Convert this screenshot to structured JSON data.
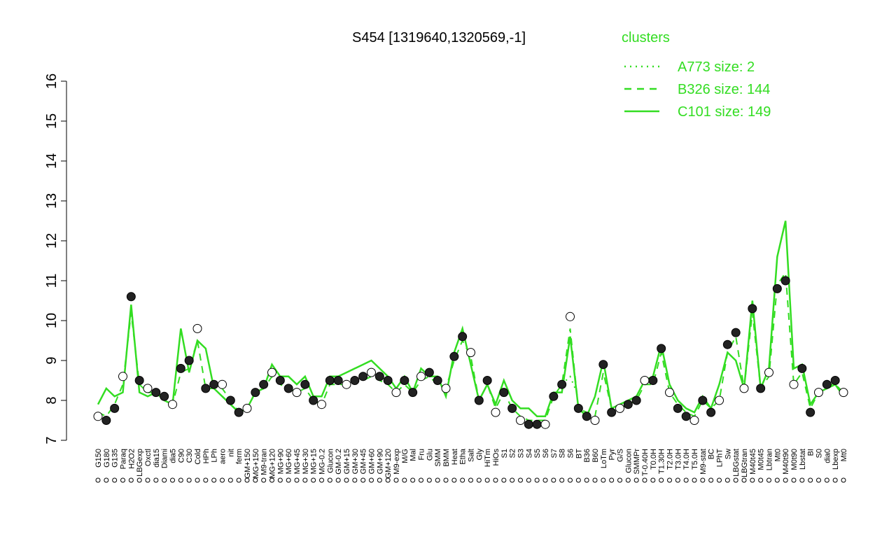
{
  "chart_data": {
    "type": "line",
    "title": "S454 [1319640,1320569,-1]",
    "legend_title": "clusters",
    "legend": "top-right",
    "ylim": [
      7,
      16
    ],
    "yticks": [
      7,
      8,
      9,
      10,
      11,
      12,
      13,
      14,
      15,
      16
    ],
    "categories": [
      "G150",
      "G180",
      "G135",
      "Paraq",
      "H2O2",
      "LBGexp",
      "Oxctl",
      "dia15",
      "Diami",
      "dia5",
      "C90",
      "C30",
      "Cold",
      "HPh",
      "LPh",
      "aero",
      "nit",
      "ferm",
      "GM+150",
      "MG+150",
      "M9-tran",
      "MG+120",
      "MG+90",
      "MG+60",
      "MG+45",
      "MG+30",
      "MG+15",
      "MG-0.2",
      "Glucon",
      "GM-0.2",
      "GM+15",
      "GM+30",
      "GM+45",
      "GM+60",
      "GM+90",
      "GM+120",
      "M9-exp",
      "M/G",
      "Mal",
      "Fru",
      "Glu",
      "SMM",
      "BMM",
      "Heat",
      "Etha",
      "Salt",
      "Gly",
      "HiTm",
      "HiOs",
      "S1",
      "S2",
      "S3",
      "S4",
      "S5",
      "S6",
      "S7",
      "S8",
      "S6",
      "BT",
      "B36",
      "B60",
      "LoTm",
      "Pyr",
      "G/S",
      "Glucon",
      "SMMPr",
      "T-0.40H",
      "T0.0H",
      "T1.30H",
      "T2.0H",
      "T3.0H",
      "T4.0H",
      "T5.0H",
      "M9-stat",
      "BC",
      "LPhT",
      "Sw",
      "LBGstat",
      "LBGtran",
      "M40t45",
      "M0t45",
      "Lbtran",
      "Mt0",
      "M40t90",
      "M0t90",
      "Lbstat",
      "BI",
      "S0",
      "dia0",
      "Lbexp",
      "Mt0"
    ],
    "values": [
      7.6,
      7.5,
      7.8,
      8.6,
      10.6,
      8.5,
      8.3,
      8.2,
      8.1,
      7.9,
      8.8,
      9.0,
      9.8,
      8.3,
      8.4,
      8.4,
      8.0,
      7.7,
      7.8,
      8.2,
      8.4,
      8.7,
      8.5,
      8.3,
      8.2,
      8.4,
      8.0,
      7.9,
      8.5,
      8.5,
      8.4,
      8.5,
      8.6,
      8.7,
      8.6,
      8.5,
      8.2,
      8.5,
      8.2,
      8.6,
      8.7,
      8.5,
      8.3,
      9.1,
      9.6,
      9.2,
      8.0,
      8.5,
      7.7,
      8.2,
      7.8,
      7.5,
      7.4,
      7.4,
      7.4,
      8.1,
      8.4,
      10.1,
      7.8,
      7.6,
      7.5,
      8.9,
      7.7,
      7.8,
      7.9,
      8.0,
      8.5,
      8.5,
      9.3,
      8.2,
      7.8,
      7.6,
      7.5,
      8.0,
      7.7,
      8.0,
      9.4,
      9.7,
      8.3,
      10.3,
      8.3,
      8.7,
      10.8,
      11.0,
      8.4,
      8.8,
      7.7,
      8.2,
      8.4,
      8.5,
      8.2
    ],
    "series": [
      {
        "name": "A773 size: 2",
        "color": "#33dd22",
        "style": "dotted",
        "values": [
          null,
          null,
          null,
          null,
          null,
          null,
          null,
          null,
          null,
          null,
          null,
          null,
          null,
          null,
          null,
          null,
          null,
          null,
          null,
          null,
          null,
          null,
          null,
          null,
          null,
          null,
          null,
          null,
          null,
          null,
          null,
          null,
          null,
          null,
          null,
          null,
          null,
          null,
          null,
          null,
          null,
          null,
          null,
          null,
          null,
          null,
          null,
          null,
          null,
          null,
          null,
          null,
          null,
          null,
          null,
          null,
          8.4,
          8.6,
          8.1,
          null,
          null,
          null,
          null,
          null,
          null,
          null,
          null,
          null,
          null,
          null,
          null,
          null,
          null,
          null,
          null,
          null,
          null,
          null,
          null,
          null,
          null,
          null,
          null,
          null,
          null,
          null,
          null,
          null,
          null,
          null,
          null
        ]
      },
      {
        "name": "B326 size: 144",
        "color": "#33dd22",
        "style": "dashed",
        "values": [
          7.7,
          7.6,
          7.9,
          8.4,
          10.2,
          8.4,
          8.2,
          8.2,
          8.0,
          7.9,
          8.7,
          8.8,
          9.5,
          8.3,
          8.3,
          8.3,
          8.0,
          7.7,
          7.8,
          8.2,
          8.3,
          8.6,
          8.4,
          8.3,
          8.2,
          8.3,
          8.0,
          7.9,
          8.4,
          8.4,
          8.4,
          8.5,
          8.5,
          8.6,
          8.5,
          8.4,
          8.2,
          8.4,
          8.2,
          8.5,
          8.6,
          8.4,
          8.3,
          9.0,
          9.5,
          9.1,
          8.0,
          8.4,
          7.8,
          8.2,
          7.8,
          7.6,
          7.5,
          7.5,
          7.5,
          8.1,
          8.4,
          9.8,
          7.8,
          7.7,
          7.6,
          8.7,
          7.8,
          7.8,
          7.9,
          8.0,
          8.4,
          8.4,
          9.2,
          8.2,
          7.9,
          7.7,
          7.6,
          8.0,
          7.8,
          8.0,
          9.2,
          9.6,
          8.3,
          10.2,
          8.3,
          8.6,
          10.9,
          11.2,
          8.4,
          8.7,
          7.8,
          8.2,
          8.4,
          8.4,
          8.2
        ]
      },
      {
        "name": "C101 size: 149",
        "color": "#33dd22",
        "style": "solid",
        "values": [
          7.9,
          8.3,
          8.1,
          8.2,
          10.4,
          8.2,
          8.1,
          8.2,
          8.0,
          7.9,
          9.8,
          8.7,
          9.5,
          9.3,
          8.3,
          8.1,
          7.9,
          7.7,
          7.8,
          8.2,
          8.3,
          8.9,
          8.6,
          8.6,
          8.4,
          8.6,
          8.1,
          8.1,
          8.6,
          8.6,
          8.7,
          8.8,
          8.9,
          9.0,
          8.8,
          8.6,
          8.3,
          8.6,
          8.2,
          8.8,
          8.6,
          8.6,
          8.1,
          9.2,
          9.8,
          8.9,
          8.0,
          8.4,
          7.9,
          8.5,
          8.0,
          7.8,
          7.8,
          7.6,
          7.6,
          8.2,
          8.2,
          9.6,
          7.8,
          7.6,
          8.1,
          9.0,
          7.8,
          7.9,
          8.0,
          8.1,
          8.5,
          8.6,
          9.4,
          8.4,
          8.0,
          7.8,
          7.7,
          8.1,
          7.8,
          8.4,
          9.2,
          9.0,
          8.3,
          10.5,
          8.3,
          8.8,
          11.6,
          12.5,
          8.8,
          8.9,
          7.9,
          8.2,
          8.3,
          8.4,
          8.1
        ]
      }
    ]
  }
}
